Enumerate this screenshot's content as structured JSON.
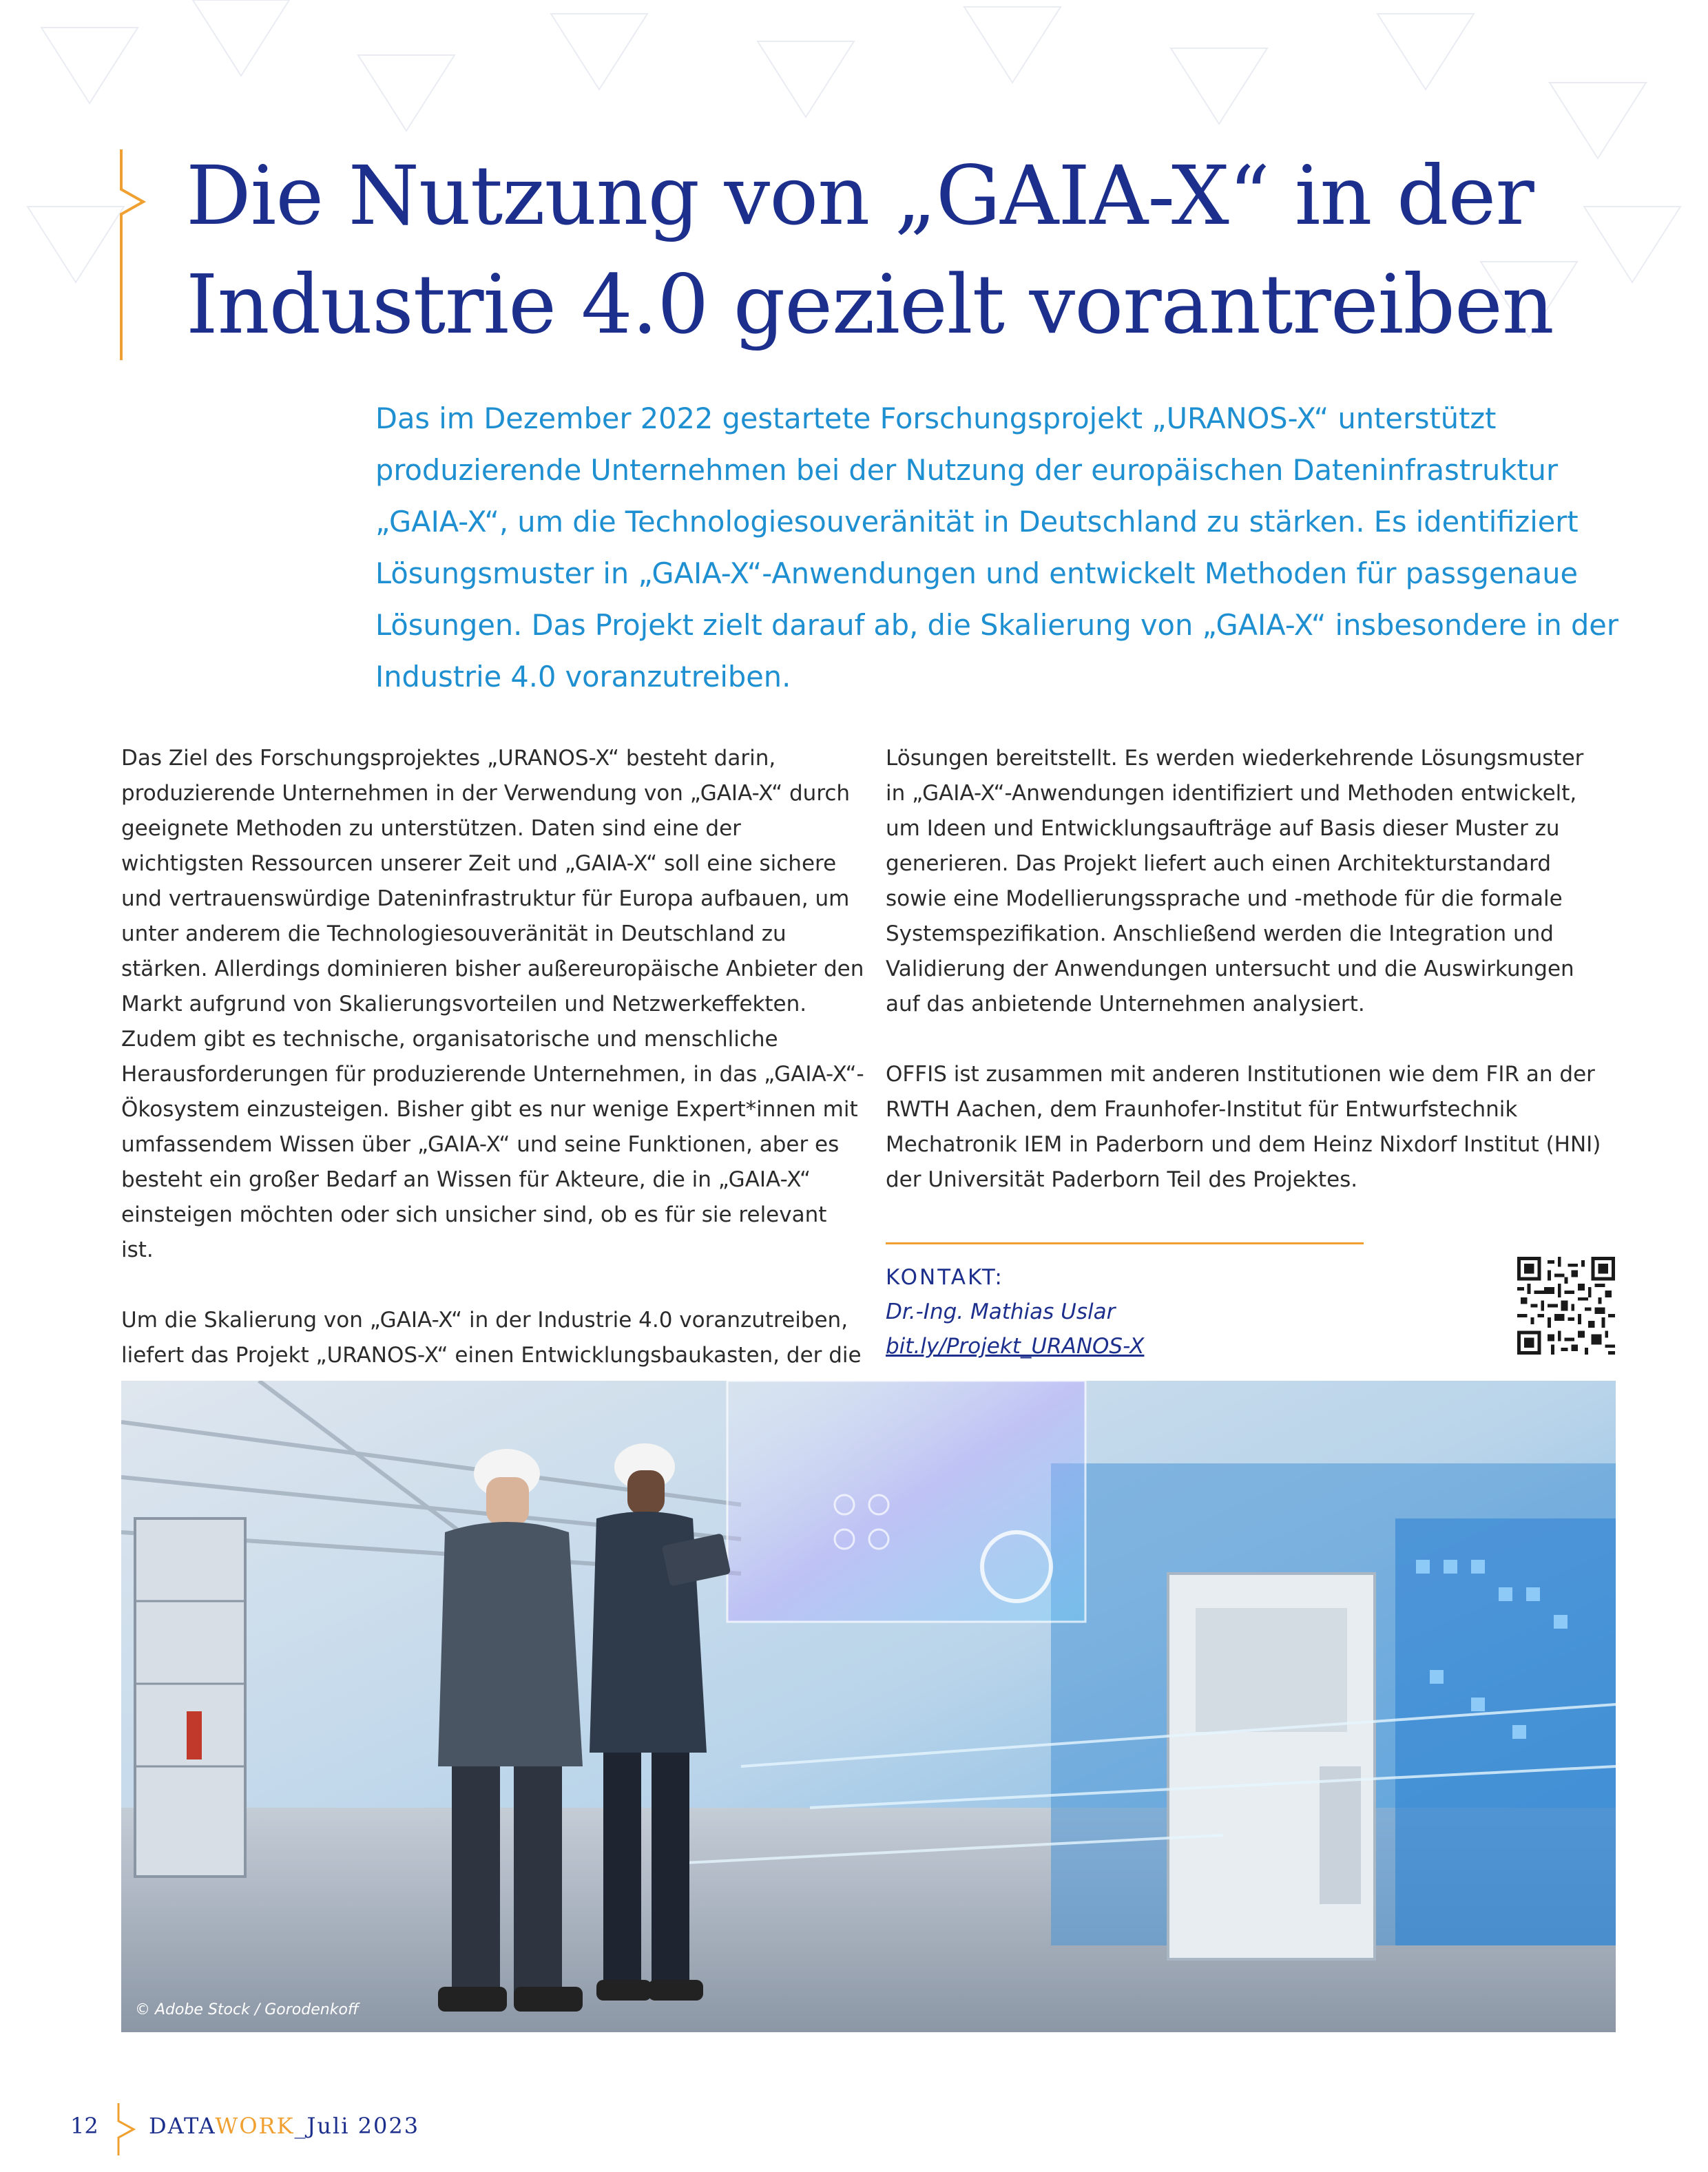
{
  "article": {
    "title_line1": "Die Nutzung von „GAIA-X“ in der",
    "title_line2": "Industrie 4.0 gezielt vorantreiben",
    "lead": "Das im Dezember 2022 gestartete Forschungsprojekt „URANOS-X“ unterstützt produzierende Unternehmen bei der Nutzung der europäischen Dateninfrastruktur „GAIA-X“, um die Technologiesouveränität in Deutschland zu stärken. Es identifiziert Lösungsmuster in „GAIA-X“-Anwendungen und entwickelt Methoden für passgenaue Lösungen. Das Projekt zielt darauf ab, die Skalierung von „GAIA-X“ insbesondere in der Industrie 4.0 voranzutreiben.",
    "left_paragraphs": [
      "Das Ziel des Forschungsprojektes „URANOS-X“ besteht darin, produzierende Unternehmen in der Verwendung von „GAIA-X“ durch geeignete Methoden zu unterstützen. Daten sind eine der wichtigsten Ressourcen unserer Zeit und „GAIA-X“ soll eine sichere und vertrauenswürdige Dateninfrastruktur für Europa aufbauen, um unter anderem die Technologiesouveränität in Deutschland zu stärken. Allerdings dominieren bisher außereuropäische Anbieter den Markt aufgrund von Skalierungsvorteilen und Netzwerkeffekten. Zudem gibt es technische, organisatorische und menschliche Herausforderungen für produzierende Unternehmen, in das „GAIA-X“-Ökosystem einzusteigen. Bisher gibt es nur wenige Expert*innen mit umfassendem Wissen über „GAIA-X“ und seine Funktionen, aber es besteht ein großer Bedarf an Wissen für Akteure, die in „GAIA-X“ einsteigen möchten oder sich unsicher sind, ob es für sie relevant ist.",
      "Um die Skalierung von „GAIA-X“ in der Industrie 4.0 voranzutreiben, liefert das Projekt „URANOS-X“ einen Entwicklungsbaukasten, der die genannten Stakeholder integriert und passgenaue"
    ],
    "right_paragraphs": [
      "Lösungen bereitstellt. Es werden wiederkehrende Lösungsmuster in „GAIA-X“-Anwendungen identifiziert und Methoden entwickelt, um Ideen und Entwicklungsaufträge auf Basis dieser Muster zu generieren. Das Projekt liefert auch einen Architekturstandard sowie eine Modellierungssprache und -methode für die formale Systemspezifikation. Anschließend werden die Integration und Validierung der Anwendungen untersucht und die Auswirkungen auf das anbietende Unternehmen analysiert.",
      "OFFIS ist zusammen mit anderen Institutionen wie dem FIR an der RWTH Aachen, dem Fraunhofer-Institut für Entwurfstechnik Mechatronik IEM in Paderborn und dem Heinz Nixdorf Institut (HNI) der Universität Paderborn Teil des Projektes."
    ]
  },
  "contact": {
    "label": "KONTAKT:",
    "name": "Dr.-Ing. Mathias Uslar",
    "link": "bit.ly/Projekt_URANOS-X"
  },
  "photo": {
    "credit": "© Adobe Stock / Gorodenkoff"
  },
  "footer": {
    "page_number": "12",
    "brand_part1": "DATA",
    "brand_part2": "WORK",
    "brand_part3": "_Juli 2023"
  },
  "colors": {
    "title_blue": "#1d2f8c",
    "lead_blue": "#1e8fd0",
    "accent_orange": "#f0a030"
  }
}
